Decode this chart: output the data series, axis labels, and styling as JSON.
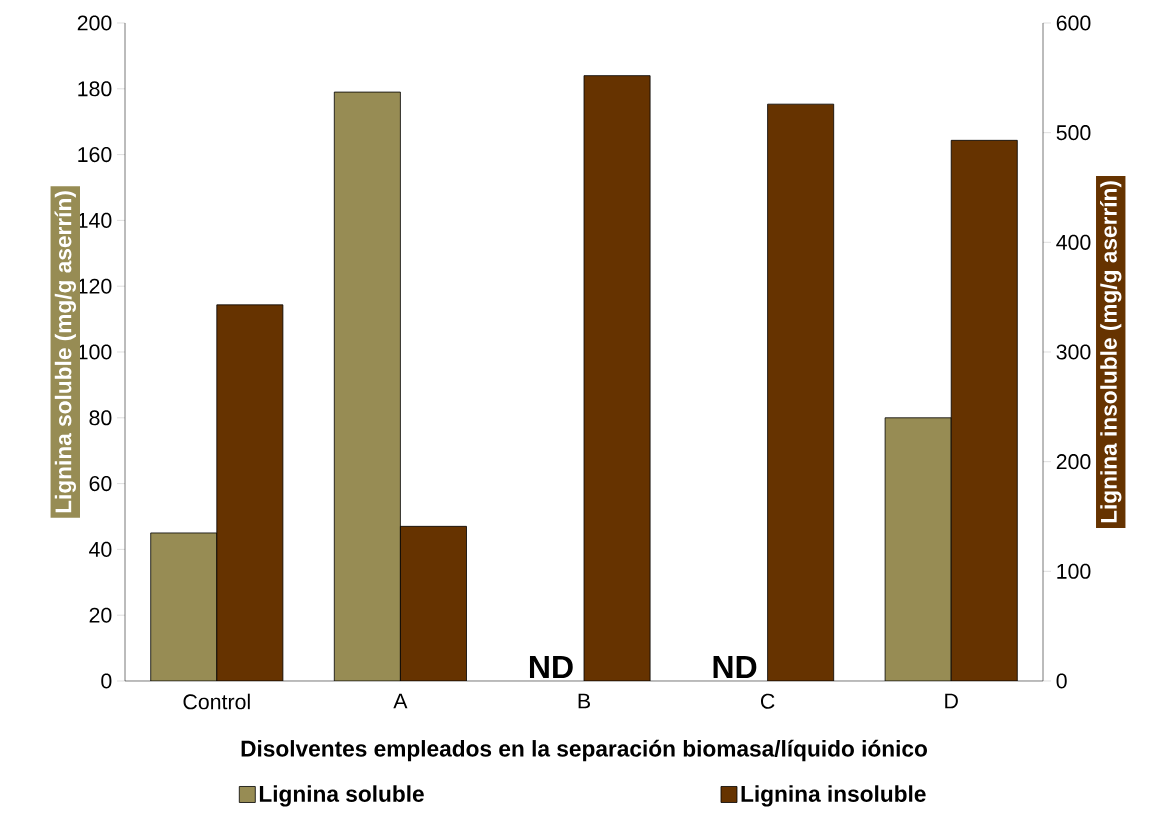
{
  "chart_data": {
    "type": "bar",
    "xlabel": "Disolventes empleados en la separación biomasa/líquido iónico",
    "ylabel": "Lignina soluble (mg/g aserrín)",
    "y2label": "Lignina insoluble (mg/g aserrín)",
    "categories": [
      "Control",
      "A",
      "B",
      "C",
      "D"
    ],
    "series": [
      {
        "name": "Lignina soluble",
        "color": "#978c54",
        "values": [
          45,
          179,
          null,
          null,
          80
        ]
      },
      {
        "name": "Lignina insoluble",
        "color": "#663300",
        "axis": "y2",
        "values": [
          343,
          141,
          552,
          526,
          493
        ]
      }
    ],
    "ylim": [
      0,
      200
    ],
    "yticks": [
      0,
      20,
      40,
      60,
      80,
      100,
      120,
      140,
      160,
      180,
      200
    ],
    "y2lim": [
      0,
      600
    ],
    "y2ticks": [
      0,
      100,
      200,
      300,
      400,
      500,
      600
    ],
    "annotations": [
      "ND",
      "ND"
    ],
    "legend": "bottom",
    "grid": false
  }
}
